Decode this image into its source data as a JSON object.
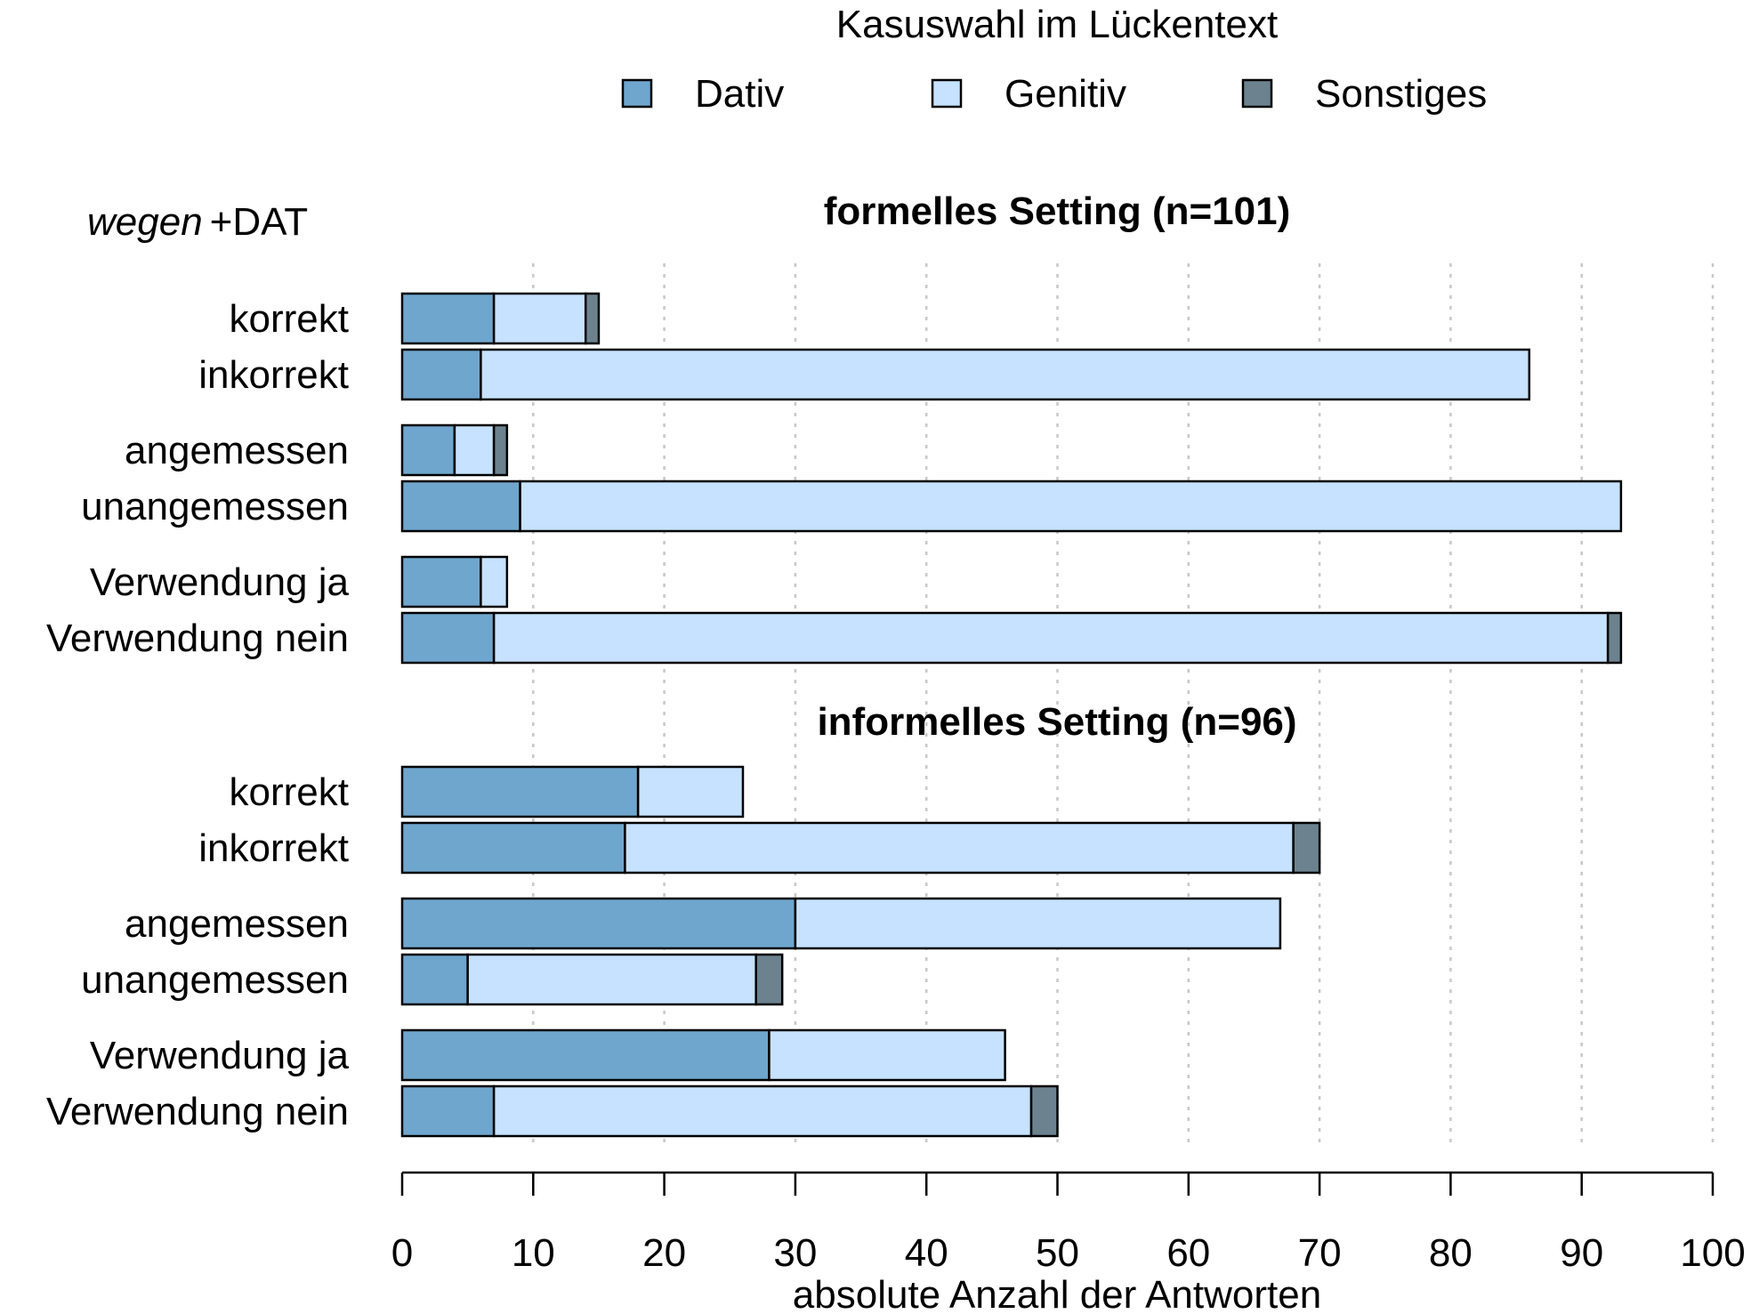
{
  "chart_data": {
    "type": "bar",
    "orientation": "horizontal",
    "stacked": true,
    "legend": {
      "title": "Kasuswahl im Lückentext",
      "position": "top-center",
      "items": [
        {
          "name": "Dativ",
          "color": "#6fa6cd"
        },
        {
          "name": "Genitiv",
          "color": "#c6e2ff"
        },
        {
          "name": "Sonstiges",
          "color": "#6c838f"
        }
      ]
    },
    "corner_label": {
      "italic": "wegen",
      "plain": "+DAT"
    },
    "xlabel": "absolute Anzahl der Antworten",
    "xlim": [
      0,
      100
    ],
    "xticks": [
      0,
      10,
      20,
      30,
      40,
      50,
      60,
      70,
      80,
      90,
      100
    ],
    "grid": "vertical dotted",
    "panels": [
      {
        "title": "formelles Setting (n=101)",
        "groups": [
          {
            "bars": [
              {
                "label": "korrekt",
                "values": [
                  7,
                  7,
                  1
                ]
              },
              {
                "label": "inkorrekt",
                "values": [
                  6,
                  80,
                  0
                ]
              }
            ]
          },
          {
            "bars": [
              {
                "label": "angemessen",
                "values": [
                  4,
                  3,
                  1
                ]
              },
              {
                "label": "unangemessen",
                "values": [
                  9,
                  84,
                  0
                ]
              }
            ]
          },
          {
            "bars": [
              {
                "label": "Verwendung ja",
                "values": [
                  6,
                  2,
                  0
                ]
              },
              {
                "label": "Verwendung nein",
                "values": [
                  7,
                  85,
                  1
                ]
              }
            ]
          }
        ]
      },
      {
        "title": "informelles Setting (n=96)",
        "groups": [
          {
            "bars": [
              {
                "label": "korrekt",
                "values": [
                  18,
                  8,
                  0
                ]
              },
              {
                "label": "inkorrekt",
                "values": [
                  17,
                  51,
                  2
                ]
              }
            ]
          },
          {
            "bars": [
              {
                "label": "angemessen",
                "values": [
                  30,
                  37,
                  0
                ]
              },
              {
                "label": "unangemessen",
                "values": [
                  5,
                  22,
                  2
                ]
              }
            ]
          },
          {
            "bars": [
              {
                "label": "Verwendung ja",
                "values": [
                  28,
                  18,
                  0
                ]
              },
              {
                "label": "Verwendung nein",
                "values": [
                  7,
                  41,
                  2
                ]
              }
            ]
          }
        ]
      }
    ]
  }
}
